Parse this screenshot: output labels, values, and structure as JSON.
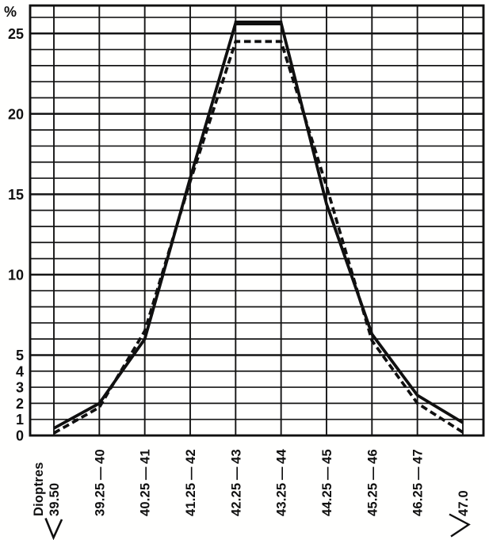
{
  "chart_data": {
    "type": "line",
    "title": "",
    "ylabel": "%",
    "xlabel": "Dioptres",
    "categories": [
      "39.50",
      "39.25 — 40",
      "40.25 — 41",
      "41.25 — 42",
      "42.25 — 43",
      "43.25 — 44",
      "44.25 — 45",
      "45.25 — 46",
      "46.25 — 47",
      "47.0"
    ],
    "first_category_axis_word": "Dioptres",
    "under_first_category_marker": "<",
    "under_last_category_marker": ">",
    "y_ticks": [
      0,
      1,
      2,
      3,
      4,
      5,
      10,
      15,
      20,
      25
    ],
    "ylim": [
      0,
      26.75
    ],
    "grid": "horizontal line every 1 percent, vertical line at every category",
    "legend_position": "none",
    "series": [
      {
        "name": "solid",
        "style": "solid",
        "values": [
          0.45,
          2.0,
          6.0,
          16.0,
          25.65,
          25.65,
          14.4,
          6.3,
          2.5,
          0.8
        ]
      },
      {
        "name": "dashed",
        "style": "dashed",
        "values": [
          0.15,
          1.75,
          6.5,
          15.8,
          24.5,
          24.5,
          15.5,
          5.9,
          2.0,
          0.2
        ]
      }
    ],
    "colors": {
      "line": "#101010",
      "grid": "#151515",
      "background": "#ffffff"
    }
  }
}
